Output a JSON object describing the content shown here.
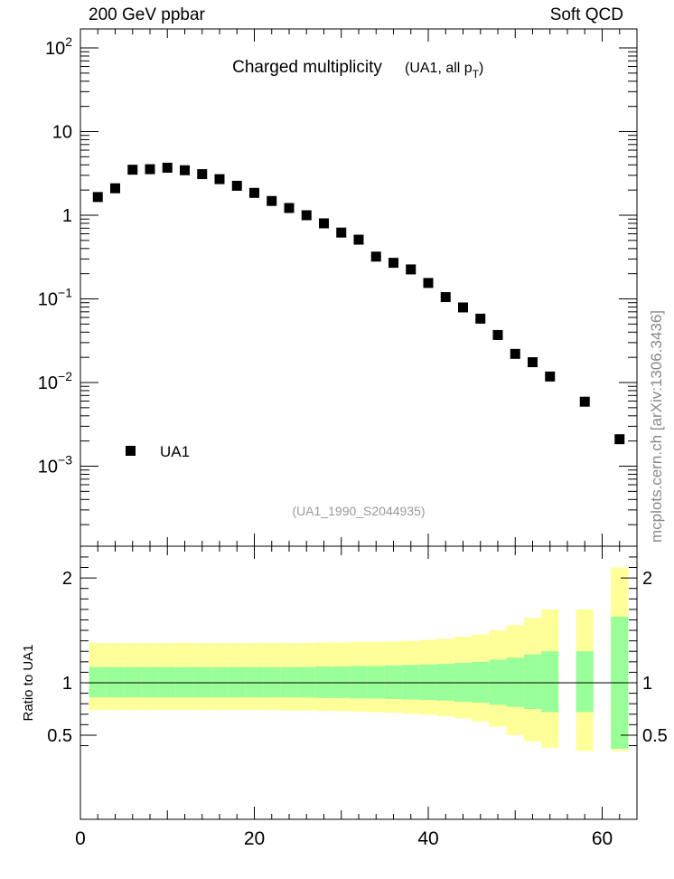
{
  "header": {
    "left_label": "200 GeV ppbar",
    "right_label": "Soft QCD"
  },
  "side_credit": "mcplots.cern.ch [arXiv:1306.3436]",
  "chart_data": [
    {
      "type": "scatter",
      "title": "Charged multiplicity",
      "title_note": "(UA1, all p",
      "title_note_sub": "T",
      "title_note_close": ")",
      "analysis_label": "(UA1_1990_S2044935)",
      "y_scale": "log",
      "ylim": [
        0.00015,
        200
      ],
      "y_ticks": [
        {
          "base": "10",
          "exp": "2"
        },
        {
          "base": "10",
          "exp": ""
        },
        {
          "base": "1",
          "exp": ""
        },
        {
          "base": "10",
          "exp": "−1"
        },
        {
          "base": "10",
          "exp": "−2"
        },
        {
          "base": "10",
          "exp": "−3"
        }
      ],
      "legend": {
        "label": "UA1",
        "placement": "bottom-left"
      },
      "series": [
        {
          "name": "UA1",
          "marker": "square",
          "color": "#000000",
          "x": [
            2,
            4,
            6,
            8,
            10,
            12,
            14,
            16,
            18,
            20,
            22,
            24,
            26,
            28,
            30,
            32,
            34,
            36,
            38,
            40,
            42,
            44,
            46,
            48,
            50,
            52,
            54,
            58,
            62
          ],
          "y": [
            1.65,
            2.1,
            3.5,
            3.55,
            3.7,
            3.45,
            3.1,
            2.7,
            2.25,
            1.85,
            1.48,
            1.22,
            1.0,
            0.8,
            0.62,
            0.51,
            0.32,
            0.27,
            0.225,
            0.155,
            0.105,
            0.079,
            0.058,
            0.037,
            0.022,
            0.0175,
            0.0118,
            0.0059,
            0.0021
          ]
        }
      ]
    },
    {
      "type": "bar",
      "ylabel": "Ratio to UA1",
      "xlim": [
        0,
        64
      ],
      "x_ticks": [
        "0",
        "20",
        "40",
        "60"
      ],
      "ylim": [
        0.35,
        2.3
      ],
      "y_ticks": [
        "2",
        "1",
        "0.5"
      ],
      "colors": {
        "inner": "#99ff99",
        "outer": "#ffff99"
      },
      "bins": [
        {
          "x0": 1,
          "x1": 3,
          "in": [
            0.86,
            1.15
          ],
          "out": [
            0.74,
            1.38
          ]
        },
        {
          "x0": 3,
          "x1": 5,
          "in": [
            0.86,
            1.15
          ],
          "out": [
            0.74,
            1.38
          ]
        },
        {
          "x0": 5,
          "x1": 7,
          "in": [
            0.86,
            1.15
          ],
          "out": [
            0.74,
            1.38
          ]
        },
        {
          "x0": 7,
          "x1": 9,
          "in": [
            0.86,
            1.15
          ],
          "out": [
            0.74,
            1.38
          ]
        },
        {
          "x0": 9,
          "x1": 11,
          "in": [
            0.86,
            1.15
          ],
          "out": [
            0.74,
            1.38
          ]
        },
        {
          "x0": 11,
          "x1": 13,
          "in": [
            0.86,
            1.15
          ],
          "out": [
            0.74,
            1.38
          ]
        },
        {
          "x0": 13,
          "x1": 15,
          "in": [
            0.86,
            1.15
          ],
          "out": [
            0.74,
            1.38
          ]
        },
        {
          "x0": 15,
          "x1": 17,
          "in": [
            0.86,
            1.15
          ],
          "out": [
            0.74,
            1.38
          ]
        },
        {
          "x0": 17,
          "x1": 19,
          "in": [
            0.86,
            1.15
          ],
          "out": [
            0.74,
            1.38
          ]
        },
        {
          "x0": 19,
          "x1": 21,
          "in": [
            0.86,
            1.15
          ],
          "out": [
            0.74,
            1.38
          ]
        },
        {
          "x0": 21,
          "x1": 23,
          "in": [
            0.86,
            1.15
          ],
          "out": [
            0.74,
            1.38
          ]
        },
        {
          "x0": 23,
          "x1": 25,
          "in": [
            0.86,
            1.15
          ],
          "out": [
            0.735,
            1.38
          ]
        },
        {
          "x0": 25,
          "x1": 27,
          "in": [
            0.86,
            1.15
          ],
          "out": [
            0.735,
            1.38
          ]
        },
        {
          "x0": 27,
          "x1": 29,
          "in": [
            0.855,
            1.155
          ],
          "out": [
            0.73,
            1.385
          ]
        },
        {
          "x0": 29,
          "x1": 31,
          "in": [
            0.855,
            1.155
          ],
          "out": [
            0.73,
            1.385
          ]
        },
        {
          "x0": 31,
          "x1": 33,
          "in": [
            0.85,
            1.16
          ],
          "out": [
            0.725,
            1.39
          ]
        },
        {
          "x0": 33,
          "x1": 35,
          "in": [
            0.85,
            1.16
          ],
          "out": [
            0.72,
            1.39
          ]
        },
        {
          "x0": 35,
          "x1": 37,
          "in": [
            0.845,
            1.165
          ],
          "out": [
            0.715,
            1.395
          ]
        },
        {
          "x0": 37,
          "x1": 39,
          "in": [
            0.84,
            1.17
          ],
          "out": [
            0.705,
            1.4
          ]
        },
        {
          "x0": 39,
          "x1": 41,
          "in": [
            0.835,
            1.175
          ],
          "out": [
            0.695,
            1.41
          ]
        },
        {
          "x0": 41,
          "x1": 43,
          "in": [
            0.83,
            1.18
          ],
          "out": [
            0.68,
            1.42
          ]
        },
        {
          "x0": 43,
          "x1": 45,
          "in": [
            0.82,
            1.19
          ],
          "out": [
            0.66,
            1.44
          ]
        },
        {
          "x0": 45,
          "x1": 47,
          "in": [
            0.81,
            1.2
          ],
          "out": [
            0.63,
            1.46
          ]
        },
        {
          "x0": 47,
          "x1": 49,
          "in": [
            0.79,
            1.22
          ],
          "out": [
            0.58,
            1.5
          ]
        },
        {
          "x0": 49,
          "x1": 51,
          "in": [
            0.77,
            1.24
          ],
          "out": [
            0.5,
            1.55
          ]
        },
        {
          "x0": 51,
          "x1": 53,
          "in": [
            0.75,
            1.27
          ],
          "out": [
            0.44,
            1.62
          ]
        },
        {
          "x0": 53,
          "x1": 55,
          "in": [
            0.72,
            1.3
          ],
          "out": [
            0.38,
            1.7
          ]
        },
        {
          "x0": 57,
          "x1": 59,
          "in": [
            0.72,
            1.3
          ],
          "out": [
            0.35,
            1.7
          ]
        },
        {
          "x0": 61,
          "x1": 63,
          "in": [
            0.37,
            1.63
          ],
          "out": [
            0.35,
            2.1
          ]
        }
      ]
    }
  ]
}
